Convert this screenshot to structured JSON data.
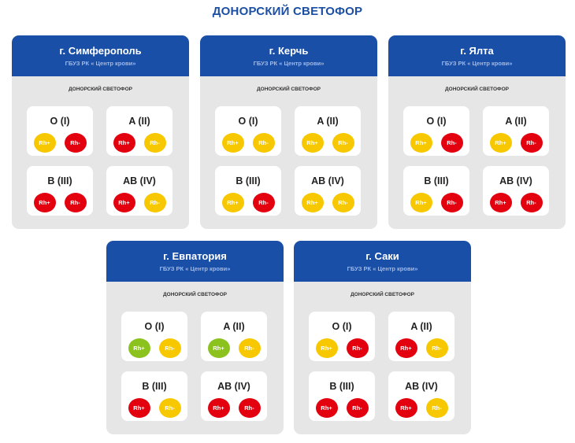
{
  "title": "ДОНОРСКИЙ СВЕТОФОР",
  "colors": {
    "red": "#e3000f",
    "yellow": "#f7c800",
    "green": "#8cc21e",
    "header": "#1a4fa8"
  },
  "labels": {
    "pos": "Rh+",
    "neg": "Rh-"
  },
  "cards": [
    {
      "city": "г. Симферополь",
      "org": "ГБУЗ РК « Центр крови»",
      "sub": "ДОНОРСКИЙ СВЕТОФОР",
      "groups": [
        {
          "name": "O (I)",
          "pos": "yellow",
          "neg": "red"
        },
        {
          "name": "A (II)",
          "pos": "red",
          "neg": "yellow"
        },
        {
          "name": "B (III)",
          "pos": "red",
          "neg": "red"
        },
        {
          "name": "AB (IV)",
          "pos": "red",
          "neg": "yellow"
        }
      ]
    },
    {
      "city": "г. Керчь",
      "org": "ГБУЗ РК « Центр крови»",
      "sub": "ДОНОРСКИЙ СВЕТОФОР",
      "groups": [
        {
          "name": "O (I)",
          "pos": "yellow",
          "neg": "yellow"
        },
        {
          "name": "A (II)",
          "pos": "yellow",
          "neg": "yellow"
        },
        {
          "name": "B (III)",
          "pos": "yellow",
          "neg": "red"
        },
        {
          "name": "AB (IV)",
          "pos": "yellow",
          "neg": "yellow"
        }
      ]
    },
    {
      "city": "г. Ялта",
      "org": "ГБУЗ РК « Центр крови»",
      "sub": "ДОНОРСКИЙ СВЕТОФОР",
      "groups": [
        {
          "name": "O (I)",
          "pos": "yellow",
          "neg": "red"
        },
        {
          "name": "A (II)",
          "pos": "yellow",
          "neg": "red"
        },
        {
          "name": "B (III)",
          "pos": "yellow",
          "neg": "red"
        },
        {
          "name": "AB (IV)",
          "pos": "red",
          "neg": "red"
        }
      ]
    },
    {
      "city": "г. Евпатория",
      "org": "ГБУЗ РК « Центр крови»",
      "sub": "ДОНОРСКИЙ СВЕТОФОР",
      "groups": [
        {
          "name": "O (I)",
          "pos": "green",
          "neg": "yellow"
        },
        {
          "name": "A (II)",
          "pos": "green",
          "neg": "yellow"
        },
        {
          "name": "B (III)",
          "pos": "red",
          "neg": "yellow"
        },
        {
          "name": "AB (IV)",
          "pos": "red",
          "neg": "red"
        }
      ]
    },
    {
      "city": "г. Саки",
      "org": "ГБУЗ РК « Центр крови»",
      "sub": "ДОНОРСКИЙ СВЕТОФОР",
      "groups": [
        {
          "name": "O (I)",
          "pos": "yellow",
          "neg": "red"
        },
        {
          "name": "A (II)",
          "pos": "red",
          "neg": "yellow"
        },
        {
          "name": "B (III)",
          "pos": "red",
          "neg": "red"
        },
        {
          "name": "AB (IV)",
          "pos": "red",
          "neg": "yellow"
        }
      ]
    }
  ]
}
